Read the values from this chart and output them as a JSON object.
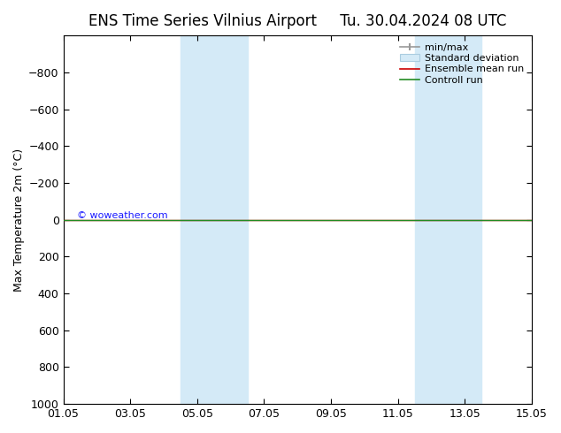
{
  "title_left": "ENS Time Series Vilnius Airport",
  "title_right": "Tu. 30.04.2024 08 UTC",
  "ylabel": "Max Temperature 2m (°C)",
  "ylim_bottom": 1000,
  "ylim_top": -1000,
  "yticks": [
    -800,
    -600,
    -400,
    -200,
    0,
    200,
    400,
    600,
    800,
    1000
  ],
  "xtick_labels": [
    "01.05",
    "03.05",
    "05.05",
    "07.05",
    "09.05",
    "11.05",
    "13.05",
    "15.05"
  ],
  "xtick_positions": [
    0,
    2,
    4,
    6,
    8,
    10,
    12,
    14
  ],
  "shaded_regions": [
    {
      "xmin": 3.5,
      "xmax": 5.5
    },
    {
      "xmin": 10.5,
      "xmax": 12.5
    }
  ],
  "shade_color": "#d4eaf7",
  "green_line_color": "#228B22",
  "red_line_color": "#cc0000",
  "watermark": "© woweather.com",
  "watermark_color": "#1a1aff",
  "background_color": "#ffffff",
  "title_fontsize": 12,
  "axis_fontsize": 9,
  "legend_fontsize": 8
}
